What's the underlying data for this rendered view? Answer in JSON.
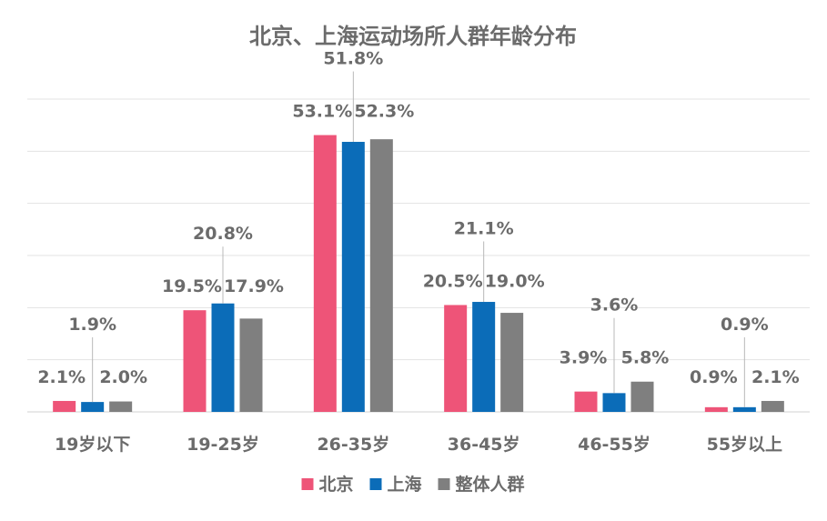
{
  "chart_data": {
    "type": "bar",
    "title": "北京、上海运动场所人群年龄分布",
    "xlabel": "",
    "ylabel": "",
    "categories": [
      "19岁以下",
      "19-25岁",
      "26-35岁",
      "36-45岁",
      "46-55岁",
      "55岁以上"
    ],
    "series": [
      {
        "name": "北京",
        "color": "#ee5478",
        "values": [
          2.1,
          19.5,
          53.1,
          20.5,
          3.9,
          0.9
        ],
        "labels": [
          "2.1%",
          "19.5%",
          "53.1%",
          "20.5%",
          "3.9%",
          "0.9%"
        ]
      },
      {
        "name": "上海",
        "color": "#0b6cb8",
        "values": [
          1.9,
          20.8,
          51.8,
          21.1,
          3.6,
          0.9
        ],
        "labels": [
          "1.9%",
          "20.8%",
          "51.8%",
          "21.1%",
          "3.6%",
          "0.9%"
        ]
      },
      {
        "name": "整体人群",
        "color": "#7f7f7f",
        "values": [
          2.0,
          17.9,
          52.3,
          19.0,
          5.8,
          2.1
        ],
        "labels": [
          "2.0%",
          "17.9%",
          "52.3%",
          "19.0%",
          "5.8%",
          "2.1%"
        ]
      }
    ],
    "ylim": [
      0,
      60
    ],
    "y_axis_labels_shown": false,
    "grid": true,
    "legend_position": "bottom"
  }
}
